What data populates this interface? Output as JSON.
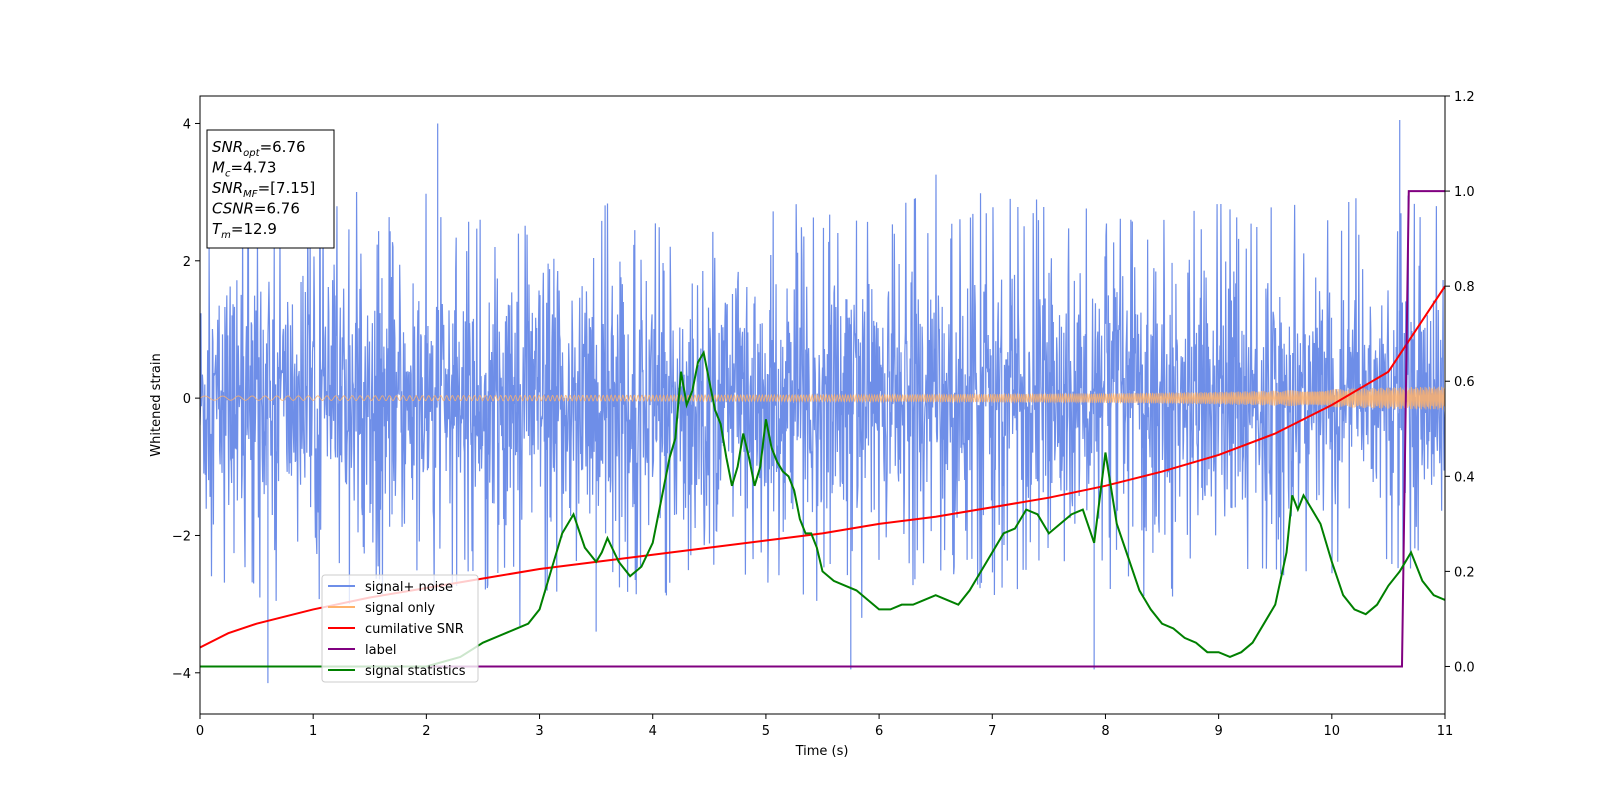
{
  "chart_data": {
    "type": "line",
    "xlabel": "Time (s)",
    "ylabel": "Whitened strain",
    "xlim": [
      0,
      11
    ],
    "ylim": [
      -4.6,
      4.4
    ],
    "ylim_right": [
      -0.1,
      1.2
    ],
    "x_ticks": [
      0,
      1,
      2,
      3,
      4,
      5,
      6,
      7,
      8,
      9,
      10,
      11
    ],
    "y_ticks": [
      -4,
      -2,
      0,
      2,
      4
    ],
    "y_ticks_right": [
      0.0,
      0.2,
      0.4,
      0.6,
      0.8,
      1.0,
      1.2
    ],
    "grid": false,
    "legend_position": "lower-left",
    "annotation": {
      "lines": [
        {
          "base": "SNR",
          "sub": "opt",
          "value": "=6.76"
        },
        {
          "base": "M",
          "sub": "c",
          "value": "=4.73"
        },
        {
          "base": "SNR",
          "sub": "MF",
          "value": "=[7.15]"
        },
        {
          "base": "CSNR",
          "sub": "",
          "value": "=6.76"
        },
        {
          "base": "T",
          "sub": "m",
          "value": "=12.9"
        }
      ]
    },
    "series": [
      {
        "name": "signal+ noise",
        "color": "#6e8ee8",
        "axis": "left",
        "noise_sigma": 0.95,
        "envelope_top": [
          2.4,
          2.6,
          2.4,
          2.5,
          2.6,
          2.5,
          2.6,
          2.7,
          2.5,
          2.6,
          2.6,
          2.8
        ],
        "envelope_bottom": [
          -2.6,
          -2.7,
          -2.7,
          -2.6,
          -2.6,
          -2.5,
          -2.5,
          -2.6,
          -2.6,
          -2.6,
          -2.5,
          -2.7
        ],
        "peak_x": [
          0.6,
          2.1,
          3.5,
          5.75,
          7.9,
          10.6
        ],
        "peak_y": [
          -4.15,
          4.0,
          -3.4,
          -3.95,
          -3.95,
          4.05
        ]
      },
      {
        "name": "signal only",
        "color": "#ffb26b",
        "axis": "left",
        "amplitude_x": [
          0,
          3,
          6,
          8,
          9,
          10,
          10.6,
          11
        ],
        "amplitude_y": [
          0.03,
          0.04,
          0.05,
          0.07,
          0.09,
          0.13,
          0.16,
          0.17
        ]
      },
      {
        "name": "cumilative SNR",
        "color": "#ff0000",
        "axis": "right",
        "x": [
          0,
          0.25,
          0.5,
          1,
          1.5,
          2,
          2.5,
          3,
          3.5,
          4,
          4.5,
          5,
          5.5,
          6,
          6.5,
          7,
          7.5,
          8,
          8.5,
          9,
          9.5,
          10,
          10.5,
          11
        ],
        "y": [
          0.04,
          0.07,
          0.09,
          0.12,
          0.145,
          0.165,
          0.185,
          0.205,
          0.22,
          0.235,
          0.25,
          0.265,
          0.28,
          0.3,
          0.315,
          0.335,
          0.355,
          0.38,
          0.41,
          0.445,
          0.49,
          0.55,
          0.62,
          0.8
        ]
      },
      {
        "name": "label",
        "color": "#800080",
        "axis": "right",
        "x": [
          0,
          10.62,
          10.68,
          11
        ],
        "y": [
          0.0,
          0.0,
          1.0,
          1.0
        ]
      },
      {
        "name": "signal statistics",
        "color": "#008000",
        "axis": "right",
        "x": [
          0,
          0.5,
          1,
          1.5,
          2,
          2.3,
          2.5,
          2.7,
          2.8,
          2.9,
          3.0,
          3.1,
          3.2,
          3.3,
          3.4,
          3.5,
          3.55,
          3.6,
          3.7,
          3.8,
          3.9,
          4.0,
          4.05,
          4.1,
          4.15,
          4.2,
          4.25,
          4.3,
          4.35,
          4.4,
          4.45,
          4.5,
          4.55,
          4.6,
          4.65,
          4.7,
          4.75,
          4.8,
          4.85,
          4.9,
          4.95,
          5.0,
          5.05,
          5.1,
          5.15,
          5.2,
          5.25,
          5.3,
          5.35,
          5.4,
          5.45,
          5.5,
          5.6,
          5.7,
          5.8,
          5.9,
          6.0,
          6.1,
          6.2,
          6.3,
          6.4,
          6.5,
          6.6,
          6.7,
          6.8,
          6.9,
          7.0,
          7.1,
          7.2,
          7.3,
          7.4,
          7.5,
          7.6,
          7.7,
          7.8,
          7.9,
          8.0,
          8.1,
          8.2,
          8.3,
          8.4,
          8.5,
          8.6,
          8.7,
          8.8,
          8.9,
          9.0,
          9.1,
          9.2,
          9.3,
          9.4,
          9.5,
          9.6,
          9.65,
          9.7,
          9.75,
          9.8,
          9.9,
          10.0,
          10.1,
          10.2,
          10.3,
          10.4,
          10.5,
          10.6,
          10.7,
          10.8,
          10.9,
          11.0
        ],
        "y": [
          0.0,
          0.0,
          0.0,
          0.0,
          0.0,
          0.02,
          0.05,
          0.07,
          0.08,
          0.09,
          0.12,
          0.2,
          0.28,
          0.32,
          0.25,
          0.22,
          0.24,
          0.27,
          0.22,
          0.19,
          0.21,
          0.26,
          0.32,
          0.38,
          0.44,
          0.48,
          0.62,
          0.55,
          0.58,
          0.64,
          0.66,
          0.6,
          0.54,
          0.51,
          0.44,
          0.38,
          0.42,
          0.49,
          0.44,
          0.38,
          0.42,
          0.52,
          0.46,
          0.43,
          0.41,
          0.4,
          0.37,
          0.31,
          0.28,
          0.28,
          0.25,
          0.2,
          0.18,
          0.17,
          0.16,
          0.14,
          0.12,
          0.12,
          0.13,
          0.13,
          0.14,
          0.15,
          0.14,
          0.13,
          0.16,
          0.2,
          0.24,
          0.28,
          0.29,
          0.33,
          0.32,
          0.28,
          0.3,
          0.32,
          0.33,
          0.26,
          0.45,
          0.3,
          0.23,
          0.16,
          0.12,
          0.09,
          0.08,
          0.06,
          0.05,
          0.03,
          0.03,
          0.02,
          0.03,
          0.05,
          0.09,
          0.13,
          0.24,
          0.36,
          0.33,
          0.36,
          0.34,
          0.3,
          0.22,
          0.15,
          0.12,
          0.11,
          0.13,
          0.17,
          0.2,
          0.24,
          0.18,
          0.15,
          0.14
        ]
      }
    ]
  }
}
